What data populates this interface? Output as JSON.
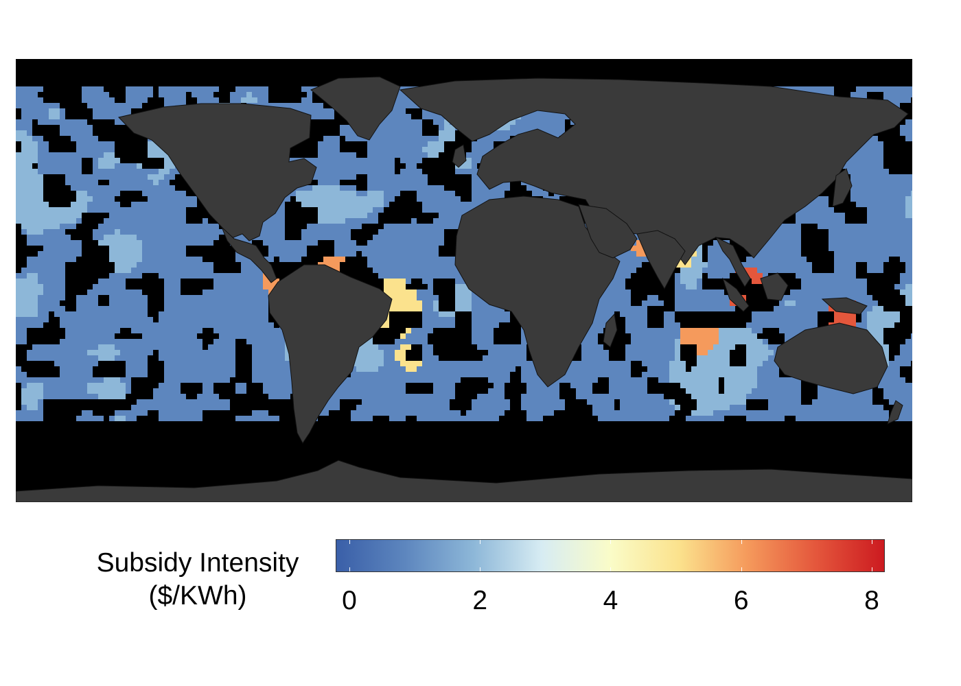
{
  "map": {
    "background_color": "#000000",
    "land_color": "#3a3a3a",
    "border_color": "#111111",
    "projection": "equirectangular"
  },
  "legend": {
    "title_line1": "Subsidy Intensity",
    "title_line2": "($/KWh)",
    "min": 0,
    "max": 8.2,
    "ticks": [
      {
        "value": 0,
        "label": "0"
      },
      {
        "value": 2,
        "label": "2"
      },
      {
        "value": 4,
        "label": "4"
      },
      {
        "value": 6,
        "label": "6"
      },
      {
        "value": 8,
        "label": "8"
      }
    ],
    "palette": [
      "#3a5fa8",
      "#5d86be",
      "#8db7d8",
      "#d7ecf3",
      "#fafcc8",
      "#fbe28d",
      "#f59a5c",
      "#e4573c",
      "#cc1a20"
    ]
  }
}
